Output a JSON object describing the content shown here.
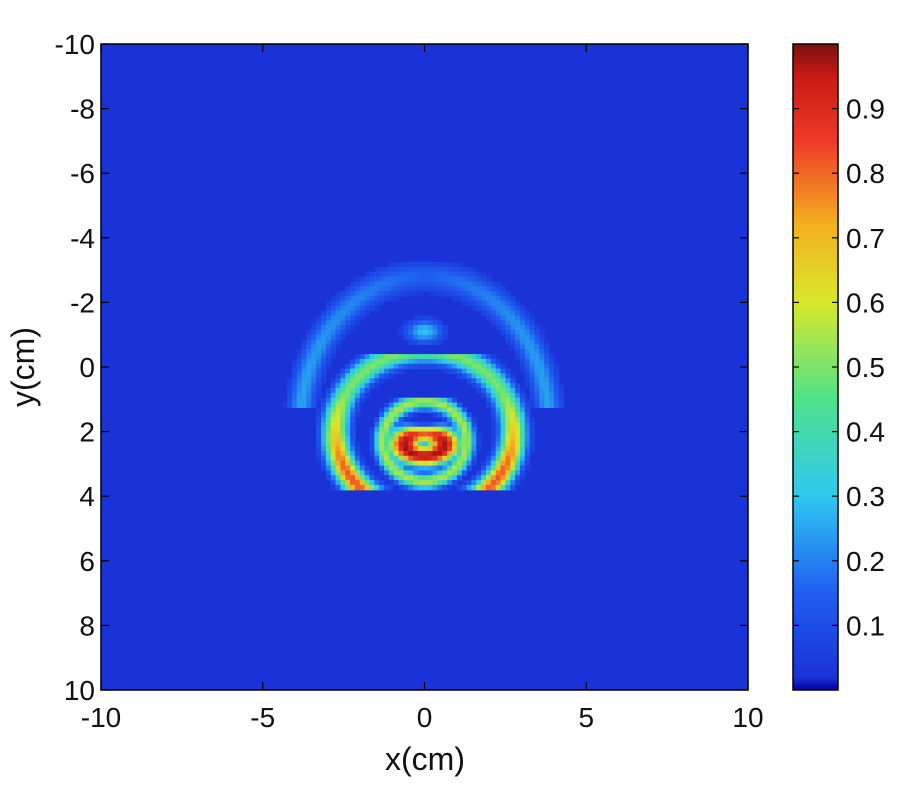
{
  "chart_data": {
    "type": "heatmap",
    "title": "",
    "xlabel": "x(cm)",
    "ylabel": "y(cm)",
    "xlim": [
      -10,
      10
    ],
    "ylim": [
      -10,
      10
    ],
    "y_axis_direction": "top-to-bottom increasing",
    "x_ticks": [
      -10,
      -5,
      0,
      5,
      10
    ],
    "x_tick_labels": [
      "-10",
      "-5",
      "0",
      "5",
      "10"
    ],
    "y_ticks": [
      -10,
      -8,
      -6,
      -4,
      -2,
      0,
      2,
      4,
      6,
      8,
      10
    ],
    "y_tick_labels": [
      "-10",
      "-8",
      "-6",
      "-4",
      "-2",
      "0",
      "2",
      "4",
      "6",
      "8",
      "10"
    ],
    "grid": false,
    "colormap": "jet",
    "background_value": 0.02,
    "colorbar": {
      "range": [
        0,
        1
      ],
      "ticks": [
        0.1,
        0.2,
        0.3,
        0.4,
        0.5,
        0.6,
        0.7,
        0.8,
        0.9
      ],
      "tick_labels": [
        "0.1",
        "0.2",
        "0.3",
        "0.4",
        "0.5",
        "0.6",
        "0.7",
        "0.8",
        "0.9"
      ],
      "placement": "right"
    },
    "features": [
      {
        "name": "central core",
        "shape": "crescent",
        "center": [
          0,
          2.4
        ],
        "peak_value": 0.98
      },
      {
        "name": "inner ring",
        "shape": "arc",
        "center": [
          0,
          2.3
        ],
        "radius": 1.3,
        "value": 0.55
      },
      {
        "name": "outer ring",
        "shape": "arc",
        "center": [
          0,
          2.0
        ],
        "radius": 2.9,
        "peak_value": 0.85
      },
      {
        "name": "upper halo",
        "shape": "arc",
        "center": [
          0,
          1.8
        ],
        "radius": 4.6,
        "value": 0.25
      },
      {
        "name": "upper spot",
        "shape": "spot",
        "center": [
          0,
          -1.1
        ],
        "value": 0.3
      }
    ]
  }
}
